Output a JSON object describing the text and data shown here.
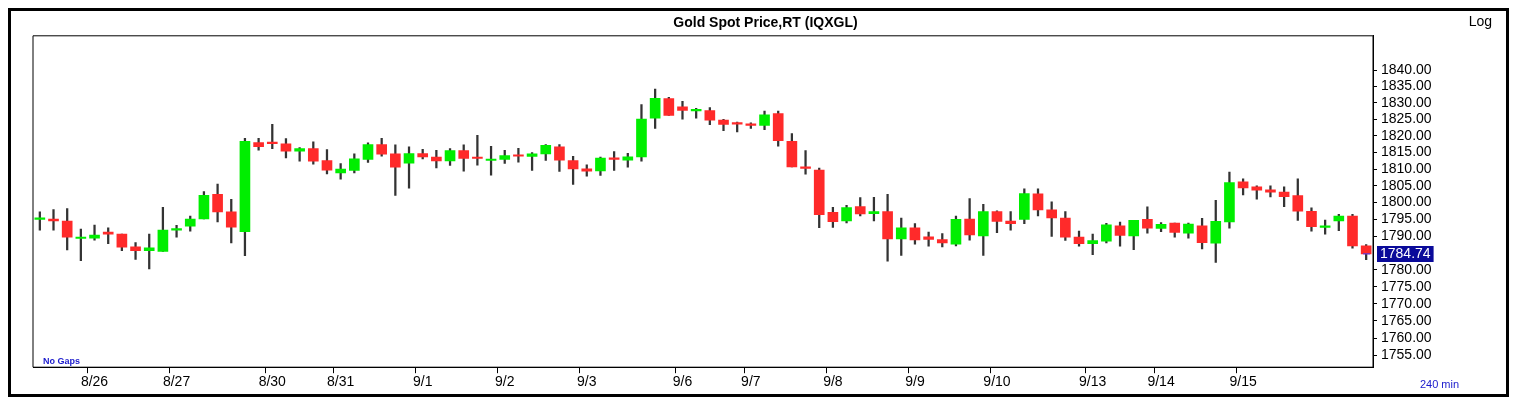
{
  "chart_data": {
    "type": "candlestick",
    "title": "Gold Spot Price,RT (IQXGL)",
    "ylabel": "Log",
    "log": "y",
    "ylim": [
      1751.5,
      1850.5
    ],
    "yticks": [
      {
        "value": 1755,
        "label": "1755.00"
      },
      {
        "value": 1760,
        "label": "1760.00"
      },
      {
        "value": 1765,
        "label": "1765.00"
      },
      {
        "value": 1770,
        "label": "1770.00"
      },
      {
        "value": 1775,
        "label": "1775.00"
      },
      {
        "value": 1780,
        "label": "1780.00"
      },
      {
        "value": 1790,
        "label": "1790.00"
      },
      {
        "value": 1795,
        "label": "1795.00"
      },
      {
        "value": 1800,
        "label": "1800.00"
      },
      {
        "value": 1805,
        "label": "1805.00"
      },
      {
        "value": 1810,
        "label": "1810.00"
      },
      {
        "value": 1815,
        "label": "1815.00"
      },
      {
        "value": 1820,
        "label": "1820.00"
      },
      {
        "value": 1825,
        "label": "1825.00"
      },
      {
        "value": 1830,
        "label": "1830.00"
      },
      {
        "value": 1835,
        "label": "1835.00"
      },
      {
        "value": 1840,
        "label": "1840.00"
      }
    ],
    "categories": [
      null,
      null,
      null,
      null,
      "8/26",
      null,
      null,
      null,
      null,
      null,
      "8/27",
      null,
      null,
      null,
      null,
      null,
      null,
      "8/30",
      null,
      null,
      null,
      null,
      "8/31",
      null,
      null,
      null,
      null,
      null,
      "9/1",
      null,
      null,
      null,
      null,
      null,
      "9/2",
      null,
      null,
      null,
      null,
      null,
      "9/3",
      null,
      null,
      null,
      null,
      null,
      null,
      "9/6",
      null,
      null,
      null,
      null,
      "9/7",
      null,
      null,
      null,
      null,
      null,
      "9/8",
      null,
      null,
      null,
      null,
      null,
      "9/9",
      null,
      null,
      null,
      null,
      null,
      "9/10",
      null,
      null,
      null,
      null,
      null,
      null,
      "9/13",
      null,
      null,
      null,
      null,
      "9/14",
      null,
      null,
      null,
      null,
      null,
      "9/15",
      null,
      null,
      null,
      null,
      null,
      null,
      null,
      null,
      null
    ],
    "ohlc": [
      [
        1795.0,
        1797.2,
        1791.8,
        1795.4
      ],
      [
        1795.1,
        1797.9,
        1791.8,
        1794.5
      ],
      [
        1794.5,
        1798.2,
        1785.9,
        1789.7
      ],
      [
        1789.3,
        1792.1,
        1782.7,
        1789.6
      ],
      [
        1789.4,
        1793.3,
        1788.8,
        1790.3
      ],
      [
        1791.2,
        1792.5,
        1787.8,
        1790.6
      ],
      [
        1790.6,
        1790.6,
        1785.7,
        1786.7
      ],
      [
        1786.8,
        1788.1,
        1783.1,
        1785.7
      ],
      [
        1785.7,
        1790.6,
        1780.3,
        1786.5
      ],
      [
        1785.5,
        1798.6,
        1785.5,
        1791.8
      ],
      [
        1791.8,
        1793.2,
        1789.7,
        1792.1
      ],
      [
        1793.0,
        1796.0,
        1791.5,
        1795.1
      ],
      [
        1795.1,
        1803.3,
        1795.1,
        1802.2
      ],
      [
        1802.5,
        1805.5,
        1794.2,
        1797.2
      ],
      [
        1797.2,
        1801.0,
        1788.0,
        1792.7
      ],
      [
        1791.3,
        1819.3,
        1784.2,
        1818.4
      ],
      [
        1818.0,
        1819.3,
        1815.7,
        1816.8
      ],
      [
        1818.1,
        1823.5,
        1816.2,
        1817.7
      ],
      [
        1817.6,
        1819.2,
        1813.4,
        1815.4
      ],
      [
        1815.4,
        1816.5,
        1812.4,
        1816.2
      ],
      [
        1816.2,
        1818.2,
        1811.5,
        1812.4
      ],
      [
        1812.6,
        1815.9,
        1808.6,
        1809.7
      ],
      [
        1808.9,
        1811.7,
        1807.0,
        1810.0
      ],
      [
        1809.6,
        1814.6,
        1808.9,
        1813.1
      ],
      [
        1812.9,
        1817.9,
        1812.0,
        1817.4
      ],
      [
        1817.4,
        1819.3,
        1813.9,
        1814.5
      ],
      [
        1814.6,
        1817.3,
        1802.1,
        1810.6
      ],
      [
        1811.8,
        1816.7,
        1804.3,
        1814.7
      ],
      [
        1814.7,
        1816.0,
        1813.1,
        1813.7
      ],
      [
        1813.6,
        1815.7,
        1810.4,
        1812.5
      ],
      [
        1812.5,
        1816.2,
        1811.1,
        1815.6
      ],
      [
        1815.6,
        1817.3,
        1809.4,
        1813.2
      ],
      [
        1813.5,
        1820.2,
        1811.2,
        1813.2
      ],
      [
        1812.6,
        1816.9,
        1808.2,
        1813.0
      ],
      [
        1812.9,
        1815.7,
        1811.7,
        1814.1
      ],
      [
        1814.3,
        1816.3,
        1812.1,
        1813.9
      ],
      [
        1813.8,
        1815.0,
        1809.6,
        1814.6
      ],
      [
        1814.6,
        1817.4,
        1812.6,
        1817.2
      ],
      [
        1816.7,
        1817.4,
        1809.3,
        1812.7
      ],
      [
        1812.6,
        1813.9,
        1805.4,
        1810.1
      ],
      [
        1810.1,
        1811.3,
        1807.9,
        1809.4
      ],
      [
        1809.5,
        1813.6,
        1808.1,
        1813.3
      ],
      [
        1813.4,
        1815.3,
        1809.6,
        1812.9
      ],
      [
        1812.7,
        1814.8,
        1810.6,
        1813.7
      ],
      [
        1813.7,
        1829.5,
        1812.4,
        1825.1
      ],
      [
        1825.4,
        1834.2,
        1822.3,
        1831.4
      ],
      [
        1831.3,
        1831.7,
        1826.2,
        1826.2
      ],
      [
        1828.8,
        1830.5,
        1825.1,
        1827.7
      ],
      [
        1827.6,
        1828.4,
        1825.4,
        1827.8
      ],
      [
        1827.7,
        1828.6,
        1823.4,
        1824.8
      ],
      [
        1824.8,
        1825.0,
        1821.6,
        1823.5
      ],
      [
        1823.8,
        1824.2,
        1821.2,
        1823.6
      ],
      [
        1823.5,
        1824.0,
        1822.3,
        1823.2
      ],
      [
        1823.2,
        1827.5,
        1821.9,
        1826.4
      ],
      [
        1826.8,
        1827.5,
        1816.9,
        1818.6
      ],
      [
        1818.4,
        1820.7,
        1810.7,
        1810.7
      ],
      [
        1810.7,
        1815.6,
        1808.5,
        1810.2
      ],
      [
        1809.7,
        1810.3,
        1792.5,
        1796.4
      ],
      [
        1797.1,
        1798.6,
        1792.6,
        1794.3
      ],
      [
        1794.5,
        1799.2,
        1793.9,
        1798.5
      ],
      [
        1798.8,
        1801.5,
        1796.0,
        1796.6
      ],
      [
        1796.7,
        1801.6,
        1794.5,
        1797.3
      ],
      [
        1797.3,
        1802.5,
        1782.6,
        1789.2
      ],
      [
        1789.2,
        1795.4,
        1784.3,
        1792.5
      ],
      [
        1792.5,
        1793.7,
        1787.6,
        1788.9
      ],
      [
        1789.8,
        1791.2,
        1787.0,
        1789.0
      ],
      [
        1789.0,
        1790.8,
        1786.8,
        1788.0
      ],
      [
        1787.6,
        1796.0,
        1787.1,
        1795.0
      ],
      [
        1795.1,
        1801.2,
        1788.8,
        1790.4
      ],
      [
        1790.1,
        1799.5,
        1784.3,
        1797.3
      ],
      [
        1797.3,
        1797.5,
        1791.0,
        1794.4
      ],
      [
        1794.5,
        1797.3,
        1791.8,
        1793.7
      ],
      [
        1795.0,
        1804.1,
        1793.7,
        1802.7
      ],
      [
        1802.6,
        1804.1,
        1796.0,
        1797.8
      ],
      [
        1797.8,
        1800.2,
        1789.9,
        1795.4
      ],
      [
        1795.4,
        1797.3,
        1788.7,
        1789.7
      ],
      [
        1789.7,
        1791.5,
        1787.0,
        1787.8
      ],
      [
        1787.8,
        1790.6,
        1784.5,
        1788.7
      ],
      [
        1788.5,
        1793.8,
        1788.0,
        1793.4
      ],
      [
        1793.1,
        1794.2,
        1787.0,
        1790.2
      ],
      [
        1790.1,
        1794.7,
        1786.0,
        1794.7
      ],
      [
        1795.0,
        1798.7,
        1790.9,
        1792.4
      ],
      [
        1792.3,
        1794.0,
        1791.3,
        1793.5
      ],
      [
        1793.9,
        1793.9,
        1789.7,
        1791.1
      ],
      [
        1790.9,
        1793.9,
        1789.4,
        1793.6
      ],
      [
        1793.1,
        1795.3,
        1786.2,
        1788.1
      ],
      [
        1787.9,
        1800.7,
        1782.2,
        1794.4
      ],
      [
        1794.2,
        1809.1,
        1792.4,
        1806.0
      ],
      [
        1806.2,
        1807.1,
        1802.3,
        1804.4
      ],
      [
        1804.7,
        1805.0,
        1801.0,
        1803.7
      ],
      [
        1803.8,
        1805.0,
        1801.7,
        1803.1
      ],
      [
        1803.1,
        1804.7,
        1798.8,
        1801.8
      ],
      [
        1802.1,
        1807.1,
        1794.7,
        1797.4
      ],
      [
        1797.4,
        1798.4,
        1791.5,
        1792.8
      ],
      [
        1792.6,
        1794.8,
        1790.6,
        1793.0
      ],
      [
        1794.5,
        1796.5,
        1791.6,
        1796.0
      ],
      [
        1796.0,
        1796.5,
        1786.4,
        1787.1
      ],
      [
        1787.1,
        1787.5,
        1783.0,
        1784.74
      ]
    ],
    "colors": [
      "#00ee00",
      "#ff2a2a",
      "#ff2a2a",
      "#00ee00",
      "#00ee00",
      "#ff2a2a",
      "#ff2a2a",
      "#ff2a2a",
      "#00ee00",
      "#00ee00",
      "#00ee00",
      "#00ee00",
      "#00ee00",
      "#ff2a2a",
      "#ff2a2a",
      "#00ee00",
      "#ff2a2a",
      "#ff2a2a",
      "#ff2a2a",
      "#00ee00",
      "#ff2a2a",
      "#ff2a2a",
      "#00ee00",
      "#00ee00",
      "#00ee00",
      "#ff2a2a",
      "#ff2a2a",
      "#00ee00",
      "#ff2a2a",
      "#ff2a2a",
      "#00ee00",
      "#ff2a2a",
      "#ff2a2a",
      "#00ee00",
      "#00ee00",
      "#ff2a2a",
      "#00ee00",
      "#00ee00",
      "#ff2a2a",
      "#ff2a2a",
      "#ff2a2a",
      "#00ee00",
      "#ff2a2a",
      "#00ee00",
      "#00ee00",
      "#00ee00",
      "#ff2a2a",
      "#ff2a2a",
      "#00ee00",
      "#ff2a2a",
      "#ff2a2a",
      "#ff2a2a",
      "#ff2a2a",
      "#00ee00",
      "#ff2a2a",
      "#ff2a2a",
      "#ff2a2a",
      "#ff2a2a",
      "#ff2a2a",
      "#00ee00",
      "#ff2a2a",
      "#00ee00",
      "#ff2a2a",
      "#00ee00",
      "#ff2a2a",
      "#ff2a2a",
      "#ff2a2a",
      "#00ee00",
      "#ff2a2a",
      "#00ee00",
      "#ff2a2a",
      "#ff2a2a",
      "#00ee00",
      "#ff2a2a",
      "#ff2a2a",
      "#ff2a2a",
      "#ff2a2a",
      "#00ee00",
      "#00ee00",
      "#ff2a2a",
      "#00ee00",
      "#ff2a2a",
      "#00ee00",
      "#ff2a2a",
      "#00ee00",
      "#ff2a2a",
      "#00ee00",
      "#00ee00",
      "#ff2a2a",
      "#ff2a2a",
      "#ff2a2a",
      "#ff2a2a",
      "#ff2a2a",
      "#ff2a2a",
      "#00ee00",
      "#00ee00",
      "#ff2a2a",
      "#ff2a2a"
    ],
    "annotations": [
      "No Gaps",
      "240 min",
      "1784.74"
    ],
    "grid": false,
    "legend": false
  }
}
